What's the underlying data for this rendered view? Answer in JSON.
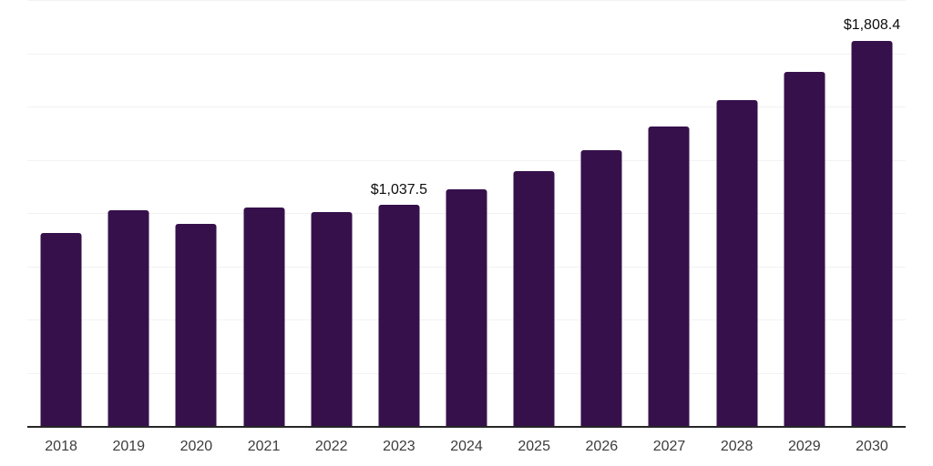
{
  "chart_data": {
    "type": "bar",
    "title": "",
    "xlabel": "",
    "ylabel": "",
    "categories": [
      "2018",
      "2019",
      "2020",
      "2021",
      "2022",
      "2023",
      "2024",
      "2025",
      "2026",
      "2027",
      "2028",
      "2029",
      "2030"
    ],
    "values": [
      905,
      1015,
      948,
      1024,
      1003,
      1037.5,
      1110,
      1195,
      1293,
      1408,
      1529,
      1662,
      1808.4
    ],
    "point_labels": [
      "",
      "",
      "",
      "",
      "",
      "$1,037.5",
      "",
      "",
      "",
      "",
      "",
      "",
      "$1,808.4"
    ],
    "ylim": [
      0,
      2000
    ],
    "grid_step": 250,
    "grid": "horizontal-only",
    "legend": "none",
    "y_tick_labels_visible": false,
    "colors": {
      "bar": "#36104B",
      "gridline": "#f2f2f2",
      "axis_line": "#262626",
      "tick_label": "#3c3c3c",
      "data_label": "#0d0d0d",
      "background": "#ffffff"
    }
  }
}
